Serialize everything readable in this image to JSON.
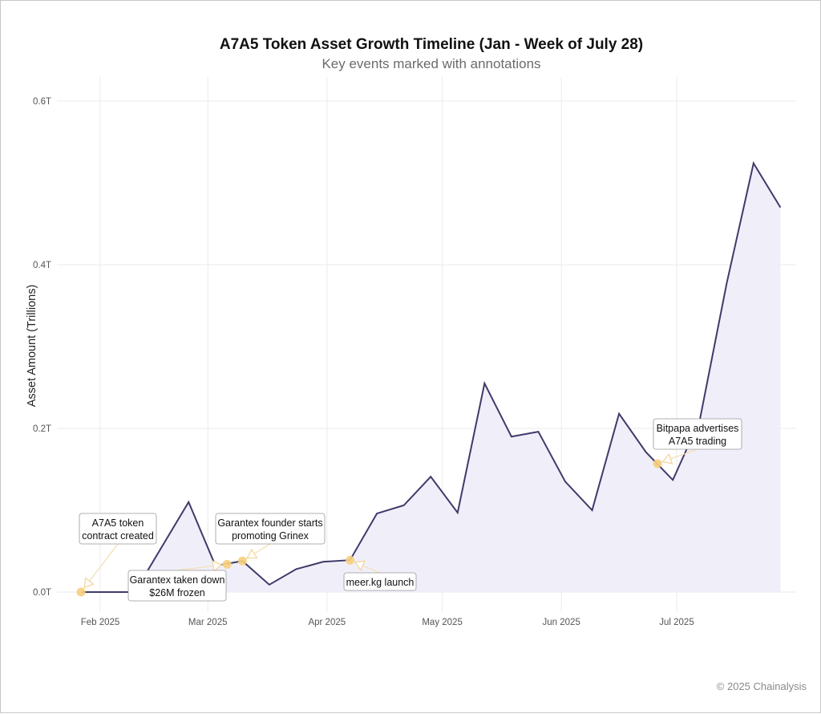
{
  "chart_data": {
    "type": "area",
    "title": "A7A5 Token Asset Growth Timeline (Jan - Week of July 28)",
    "subtitle": "Key events marked with annotations",
    "xlabel": "",
    "ylabel": "Asset Amount (Trillions)",
    "x_ticks": [
      {
        "date": "2025-02-01",
        "label": "Feb 2025"
      },
      {
        "date": "2025-03-01",
        "label": "Mar 2025"
      },
      {
        "date": "2025-04-01",
        "label": "Apr 2025"
      },
      {
        "date": "2025-05-01",
        "label": "May 2025"
      },
      {
        "date": "2025-06-01",
        "label": "Jun 2025"
      },
      {
        "date": "2025-07-01",
        "label": "Jul 2025"
      }
    ],
    "y_ticks": [
      {
        "value": 0.0,
        "label": "0.0T"
      },
      {
        "value": 0.2,
        "label": "0.2T"
      },
      {
        "value": 0.4,
        "label": "0.4T"
      },
      {
        "value": 0.6,
        "label": "0.6T"
      }
    ],
    "xlim": [
      "2025-01-22",
      "2025-08-01"
    ],
    "ylim": [
      -0.02,
      0.66
    ],
    "grid": true,
    "line_color": "#3f3a6b",
    "fill_color": "#eeedf8",
    "marker_color": "#f7cf7d",
    "x": [
      "2025-01-27",
      "2025-02-03",
      "2025-02-10",
      "2025-02-17",
      "2025-02-24",
      "2025-03-03",
      "2025-03-10",
      "2025-03-17",
      "2025-03-24",
      "2025-03-31",
      "2025-04-07",
      "2025-04-14",
      "2025-04-21",
      "2025-04-28",
      "2025-05-05",
      "2025-05-12",
      "2025-05-19",
      "2025-05-26",
      "2025-06-02",
      "2025-06-09",
      "2025-06-16",
      "2025-06-23",
      "2025-06-30",
      "2025-07-07",
      "2025-07-14",
      "2025-07-21",
      "2025-07-28"
    ],
    "values": [
      0.0,
      0.0,
      0.0,
      0.055,
      0.11,
      0.032,
      0.038,
      0.009,
      0.028,
      0.037,
      0.039,
      0.096,
      0.106,
      0.141,
      0.097,
      0.255,
      0.19,
      0.196,
      0.135,
      0.1,
      0.218,
      0.171,
      0.137,
      0.21,
      0.377,
      0.524,
      0.47
    ],
    "annotations": [
      {
        "id": "contract",
        "date": "2025-01-27",
        "value": 0.0,
        "lines": [
          "A7A5 token",
          "contract created"
        ]
      },
      {
        "id": "takedown",
        "date": "2025-03-06",
        "value": 0.034,
        "lines": [
          "Garantex taken down",
          "$26M frozen"
        ]
      },
      {
        "id": "grinex",
        "date": "2025-03-10",
        "value": 0.038,
        "lines": [
          "Garantex founder starts",
          "promoting Grinex"
        ]
      },
      {
        "id": "meer",
        "date": "2025-04-07",
        "value": 0.039,
        "lines": [
          "meer.kg launch"
        ]
      },
      {
        "id": "bitpapa",
        "date": "2025-06-26",
        "value": 0.157,
        "lines": [
          "Bitpapa advertises",
          "A7A5 trading"
        ]
      }
    ]
  },
  "footer": "© 2025 Chainalysis"
}
